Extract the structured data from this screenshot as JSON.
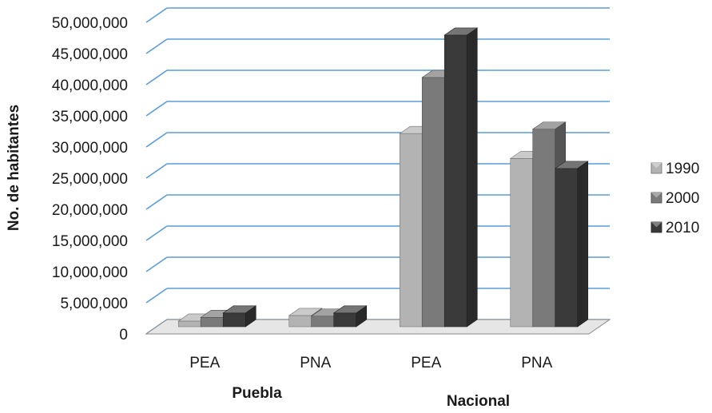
{
  "chart_data": {
    "type": "bar",
    "style": "3d-clustered-column",
    "ylabel": "No. de habitantes",
    "ylim": [
      0,
      50000000
    ],
    "yticks": [
      0,
      5000000,
      10000000,
      15000000,
      20000000,
      25000000,
      30000000,
      35000000,
      40000000,
      45000000,
      50000000
    ],
    "ytick_labels": [
      "0",
      "5,000,000",
      "10,000,000",
      "15,000,000",
      "20,000,000",
      "25,000,000",
      "30,000,000",
      "35,000,000",
      "40,000,000",
      "45,000,000",
      "50,000,000"
    ],
    "categories": [
      "PEA",
      "PNA",
      "PEA",
      "PNA"
    ],
    "groups": [
      {
        "label": "Puebla",
        "categories": [
          0,
          1
        ]
      },
      {
        "label": "Nacional",
        "categories": [
          2,
          3
        ]
      }
    ],
    "series": [
      {
        "name": "1990",
        "color": "#b3b3b3",
        "values": [
          900000,
          1800000,
          31000000,
          27000000
        ]
      },
      {
        "name": "2000",
        "color": "#7a7a7a",
        "values": [
          1500000,
          1700000,
          40000000,
          31700000
        ]
      },
      {
        "name": "2010",
        "color": "#3a3a3a",
        "values": [
          2200000,
          2200000,
          46800000,
          25400000
        ]
      }
    ],
    "grid": true,
    "grid_color": "#5b9bd5",
    "legend_position": "right"
  }
}
